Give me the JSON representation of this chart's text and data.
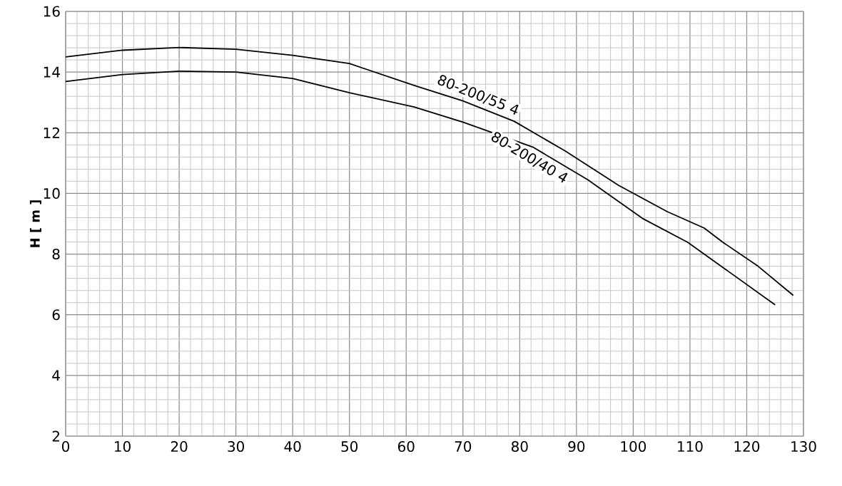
{
  "chart_data": {
    "type": "line",
    "ylabel": "H [ m ]",
    "xlim": [
      0,
      130
    ],
    "ylim": [
      2,
      16
    ],
    "xticks": [
      0,
      10,
      20,
      30,
      40,
      50,
      60,
      70,
      80,
      90,
      100,
      110,
      120,
      130
    ],
    "yticks": [
      2,
      4,
      6,
      8,
      10,
      12,
      14,
      16
    ],
    "grid": true,
    "marker": "none",
    "line_style": "solid",
    "series": [
      {
        "name": "80-200/55 4",
        "color": "#000000",
        "x": [
          0,
          10,
          20,
          30,
          40,
          50,
          61.4,
          70,
          79,
          88,
          97.4,
          106,
          112.5,
          115.8,
          122,
          128.2
        ],
        "values": [
          14.5,
          14.72,
          14.81,
          14.75,
          14.55,
          14.28,
          13.56,
          13.05,
          12.38,
          11.4,
          10.27,
          9.4,
          8.86,
          8.39,
          7.6,
          6.64
        ]
      },
      {
        "name": "80-200/40 4",
        "color": "#000000",
        "x": [
          0,
          10,
          20,
          30,
          40,
          50,
          61.4,
          70,
          82.3,
          92,
          101.6,
          109.6,
          117,
          125.0
        ],
        "values": [
          13.69,
          13.92,
          14.03,
          14.0,
          13.79,
          13.32,
          12.85,
          12.35,
          11.53,
          10.45,
          9.18,
          8.39,
          7.4,
          6.33
        ]
      }
    ]
  }
}
